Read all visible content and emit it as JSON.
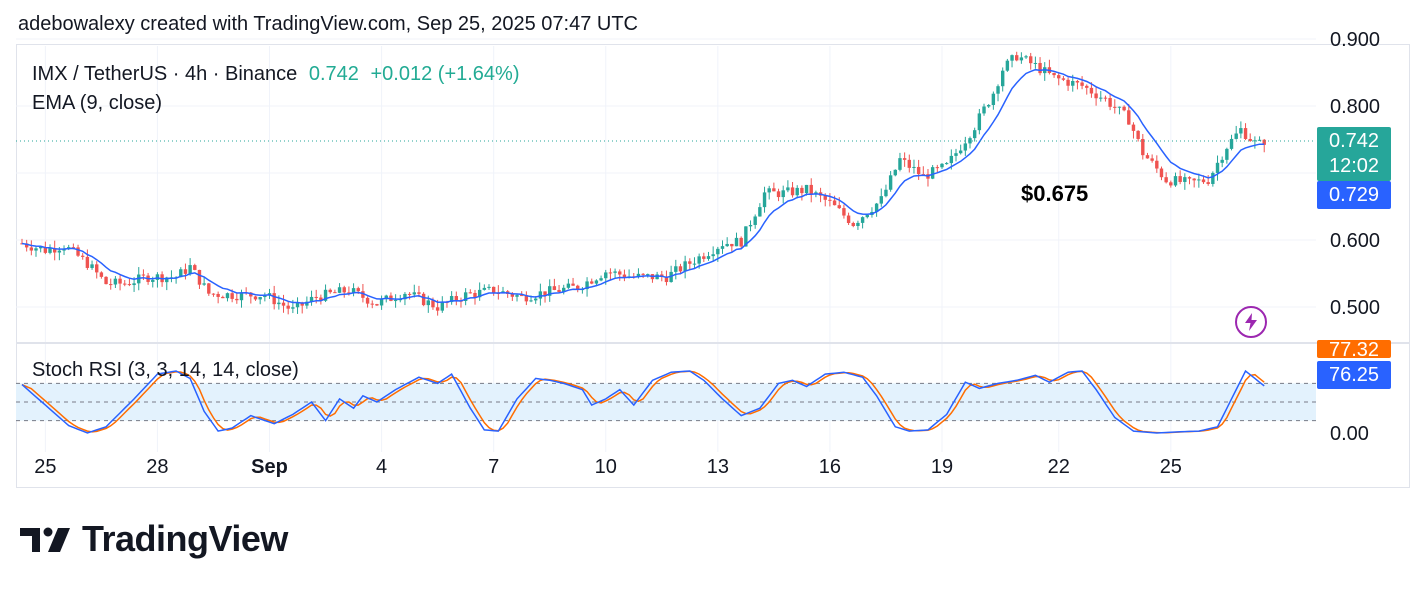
{
  "header": {
    "credit": "adebowalexy created with TradingView.com, Sep 25, 2025 07:47 UTC"
  },
  "legend": {
    "symbol": "IMX / TetherUS · 4h · Binance",
    "price": "0.742",
    "change": "+0.012 (+1.64%)",
    "indicator": "EMA (9, close)"
  },
  "badges": {
    "last_price": "0.742",
    "countdown": "12:02",
    "ema_value": "0.729",
    "stoch_k_value": "77.32",
    "stoch_d_value": "76.25"
  },
  "annotation": "$0.675",
  "stoch": {
    "label": "Stoch RSI (3, 3, 14, 14, close)"
  },
  "branding": {
    "logo_text": "TradingView"
  },
  "icons": {
    "alert": "lightning-bolt-icon",
    "logo": "tradingview-logo-icon"
  },
  "colors": {
    "up": "#26a69a",
    "down": "#ef5350",
    "ema": "#2962ff",
    "stoch_k": "#2962ff",
    "stoch_d": "#ff6d00",
    "band": "#e3f2fd",
    "price_line": "#26a69a"
  },
  "chart_data": [
    {
      "type": "candlestick",
      "title": "IMX / TetherUS · 4h · Binance",
      "interval": "4h",
      "x_ticks": [
        "25",
        "28",
        "Sep",
        "4",
        "7",
        "10",
        "13",
        "16",
        "19",
        "22",
        "25"
      ],
      "y_ticks": [
        "0.500",
        "0.600",
        "0.800",
        "0.900"
      ],
      "ylim": [
        0.48,
        0.91
      ],
      "last_price": 0.742,
      "grid": true,
      "anchors": [
        {
          "t": 0,
          "v": 0.595
        },
        {
          "t": 5,
          "v": 0.585
        },
        {
          "t": 9,
          "v": 0.592
        },
        {
          "t": 14,
          "v": 0.565
        },
        {
          "t": 18,
          "v": 0.535
        },
        {
          "t": 22,
          "v": 0.535
        },
        {
          "t": 27,
          "v": 0.545
        },
        {
          "t": 33,
          "v": 0.545
        },
        {
          "t": 36,
          "v": 0.56
        },
        {
          "t": 40,
          "v": 0.52
        },
        {
          "t": 46,
          "v": 0.518
        },
        {
          "t": 52,
          "v": 0.518
        },
        {
          "t": 58,
          "v": 0.495
        },
        {
          "t": 63,
          "v": 0.515
        },
        {
          "t": 70,
          "v": 0.525
        },
        {
          "t": 76,
          "v": 0.505
        },
        {
          "t": 82,
          "v": 0.522
        },
        {
          "t": 89,
          "v": 0.5
        },
        {
          "t": 95,
          "v": 0.518
        },
        {
          "t": 101,
          "v": 0.525
        },
        {
          "t": 107,
          "v": 0.515
        },
        {
          "t": 112,
          "v": 0.522
        },
        {
          "t": 119,
          "v": 0.53
        },
        {
          "t": 125,
          "v": 0.553
        },
        {
          "t": 131,
          "v": 0.545
        },
        {
          "t": 138,
          "v": 0.545
        },
        {
          "t": 144,
          "v": 0.57
        },
        {
          "t": 150,
          "v": 0.595
        },
        {
          "t": 154,
          "v": 0.598
        },
        {
          "t": 159,
          "v": 0.67
        },
        {
          "t": 163,
          "v": 0.67
        },
        {
          "t": 168,
          "v": 0.675
        },
        {
          "t": 173,
          "v": 0.655
        },
        {
          "t": 178,
          "v": 0.625
        },
        {
          "t": 184,
          "v": 0.66
        },
        {
          "t": 188,
          "v": 0.72
        },
        {
          "t": 193,
          "v": 0.695
        },
        {
          "t": 198,
          "v": 0.71
        },
        {
          "t": 204,
          "v": 0.77
        },
        {
          "t": 208,
          "v": 0.82
        },
        {
          "t": 210,
          "v": 0.855
        },
        {
          "t": 213,
          "v": 0.875
        },
        {
          "t": 217,
          "v": 0.86
        },
        {
          "t": 221,
          "v": 0.842
        },
        {
          "t": 227,
          "v": 0.83
        },
        {
          "t": 232,
          "v": 0.81
        },
        {
          "t": 237,
          "v": 0.78
        },
        {
          "t": 240,
          "v": 0.73
        },
        {
          "t": 245,
          "v": 0.69
        },
        {
          "t": 250,
          "v": 0.685
        },
        {
          "t": 254,
          "v": 0.69
        },
        {
          "t": 258,
          "v": 0.74
        },
        {
          "t": 261,
          "v": 0.765
        },
        {
          "t": 264,
          "v": 0.745
        },
        {
          "t": 266,
          "v": 0.742
        }
      ]
    },
    {
      "type": "line",
      "title": "Stoch RSI (3, 3, 14, 14, close)",
      "y_ticks": [
        "0.00"
      ],
      "bands": [
        20,
        50,
        80
      ],
      "ylim": [
        0,
        100
      ],
      "series": [
        {
          "name": "K",
          "color": "#2962ff"
        },
        {
          "name": "D",
          "color": "#ff6d00"
        }
      ],
      "anchors": [
        {
          "t": 0,
          "v": 78
        },
        {
          "t": 5,
          "v": 45
        },
        {
          "t": 10,
          "v": 12
        },
        {
          "t": 14,
          "v": 0
        },
        {
          "t": 18,
          "v": 10
        },
        {
          "t": 24,
          "v": 55
        },
        {
          "t": 29,
          "v": 95
        },
        {
          "t": 33,
          "v": 100
        },
        {
          "t": 36,
          "v": 88
        },
        {
          "t": 39,
          "v": 35
        },
        {
          "t": 42,
          "v": 3
        },
        {
          "t": 45,
          "v": 8
        },
        {
          "t": 49,
          "v": 28
        },
        {
          "t": 54,
          "v": 15
        },
        {
          "t": 58,
          "v": 30
        },
        {
          "t": 62,
          "v": 50
        },
        {
          "t": 65,
          "v": 20
        },
        {
          "t": 68,
          "v": 55
        },
        {
          "t": 71,
          "v": 40
        },
        {
          "t": 73,
          "v": 60
        },
        {
          "t": 76,
          "v": 50
        },
        {
          "t": 80,
          "v": 70
        },
        {
          "t": 85,
          "v": 90
        },
        {
          "t": 89,
          "v": 80
        },
        {
          "t": 92,
          "v": 95
        },
        {
          "t": 96,
          "v": 40
        },
        {
          "t": 99,
          "v": 5
        },
        {
          "t": 102,
          "v": 3
        },
        {
          "t": 106,
          "v": 55
        },
        {
          "t": 110,
          "v": 88
        },
        {
          "t": 113,
          "v": 85
        },
        {
          "t": 116,
          "v": 80
        },
        {
          "t": 120,
          "v": 70
        },
        {
          "t": 122,
          "v": 45
        },
        {
          "t": 125,
          "v": 55
        },
        {
          "t": 128,
          "v": 70
        },
        {
          "t": 131,
          "v": 45
        },
        {
          "t": 135,
          "v": 85
        },
        {
          "t": 139,
          "v": 98
        },
        {
          "t": 143,
          "v": 100
        },
        {
          "t": 146,
          "v": 85
        },
        {
          "t": 150,
          "v": 55
        },
        {
          "t": 154,
          "v": 28
        },
        {
          "t": 158,
          "v": 40
        },
        {
          "t": 162,
          "v": 80
        },
        {
          "t": 165,
          "v": 85
        },
        {
          "t": 168,
          "v": 75
        },
        {
          "t": 172,
          "v": 95
        },
        {
          "t": 176,
          "v": 98
        },
        {
          "t": 180,
          "v": 90
        },
        {
          "t": 183,
          "v": 60
        },
        {
          "t": 187,
          "v": 10
        },
        {
          "t": 190,
          "v": 3
        },
        {
          "t": 194,
          "v": 5
        },
        {
          "t": 198,
          "v": 30
        },
        {
          "t": 202,
          "v": 82
        },
        {
          "t": 205,
          "v": 72
        },
        {
          "t": 209,
          "v": 80
        },
        {
          "t": 213,
          "v": 85
        },
        {
          "t": 217,
          "v": 93
        },
        {
          "t": 220,
          "v": 82
        },
        {
          "t": 224,
          "v": 98
        },
        {
          "t": 227,
          "v": 100
        },
        {
          "t": 230,
          "v": 70
        },
        {
          "t": 234,
          "v": 25
        },
        {
          "t": 238,
          "v": 3
        },
        {
          "t": 243,
          "v": 0
        },
        {
          "t": 248,
          "v": 2
        },
        {
          "t": 252,
          "v": 3
        },
        {
          "t": 256,
          "v": 10
        },
        {
          "t": 259,
          "v": 55
        },
        {
          "t": 262,
          "v": 100
        },
        {
          "t": 264,
          "v": 88
        },
        {
          "t": 266,
          "v": 76
        }
      ]
    }
  ]
}
